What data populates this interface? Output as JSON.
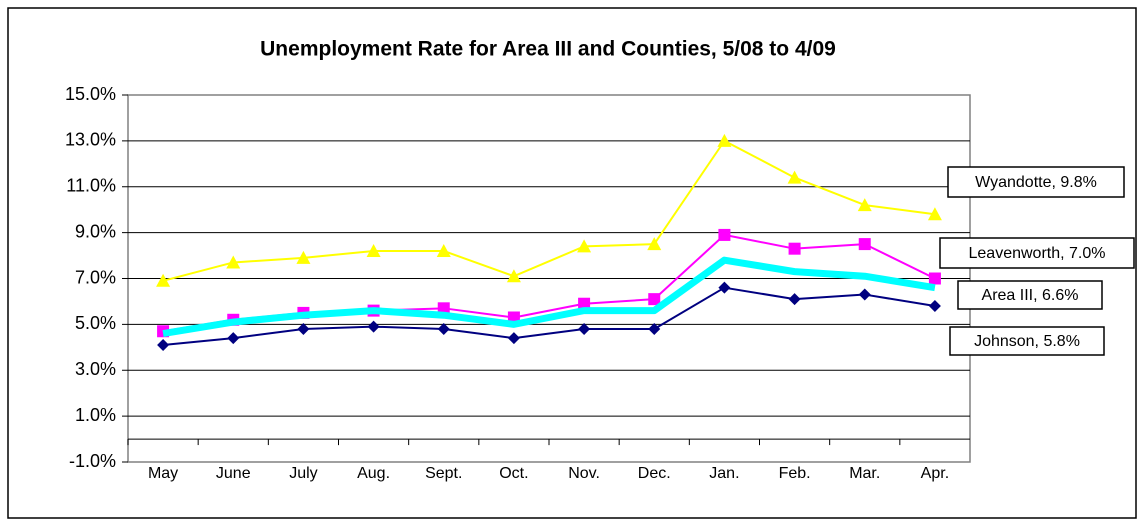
{
  "chart_data": {
    "type": "line",
    "title": "Unemployment Rate for Area III and Counties, 5/08 to 4/09",
    "categories": [
      "May",
      "June",
      "July",
      "Aug.",
      "Sept.",
      "Oct.",
      "Nov.",
      "Dec.",
      "Jan.",
      "Feb.",
      "Mar.",
      "Apr."
    ],
    "series": [
      {
        "name": "Wyandotte",
        "label": "Wyandotte, 9.8%",
        "color": "#ffff00",
        "marker": "triangle",
        "values": [
          6.9,
          7.7,
          7.9,
          8.2,
          8.2,
          7.1,
          8.4,
          8.5,
          13.0,
          11.4,
          10.2,
          9.8
        ]
      },
      {
        "name": "Leavenworth",
        "label": "Leavenworth, 7.0%",
        "color": "#ff00ff",
        "marker": "square",
        "values": [
          4.7,
          5.2,
          5.5,
          5.6,
          5.7,
          5.3,
          5.9,
          6.1,
          8.9,
          8.3,
          8.5,
          7.0
        ]
      },
      {
        "name": "Area III",
        "label": "Area III, 6.6%",
        "color": "#00ffff",
        "marker": "none",
        "values": [
          4.6,
          5.1,
          5.4,
          5.6,
          5.4,
          5.0,
          5.6,
          5.6,
          7.8,
          7.3,
          7.1,
          6.6
        ]
      },
      {
        "name": "Johnson",
        "label": "Johnson, 5.8%",
        "color": "#000080",
        "marker": "diamond",
        "values": [
          4.1,
          4.4,
          4.8,
          4.9,
          4.8,
          4.4,
          4.8,
          4.8,
          6.6,
          6.1,
          6.3,
          5.8
        ]
      }
    ],
    "ylim": [
      -1,
      15
    ],
    "yticks": [
      {
        "value": -1,
        "label": "-1.0%"
      },
      {
        "value": 1,
        "label": "1.0%"
      },
      {
        "value": 3,
        "label": "3.0%"
      },
      {
        "value": 5,
        "label": "5.0%"
      },
      {
        "value": 7,
        "label": "7.0%"
      },
      {
        "value": 9,
        "label": "9.0%"
      },
      {
        "value": 11,
        "label": "11.0%"
      },
      {
        "value": 13,
        "label": "13.0%"
      },
      {
        "value": 15,
        "label": "15.0%"
      }
    ],
    "grid": true
  }
}
